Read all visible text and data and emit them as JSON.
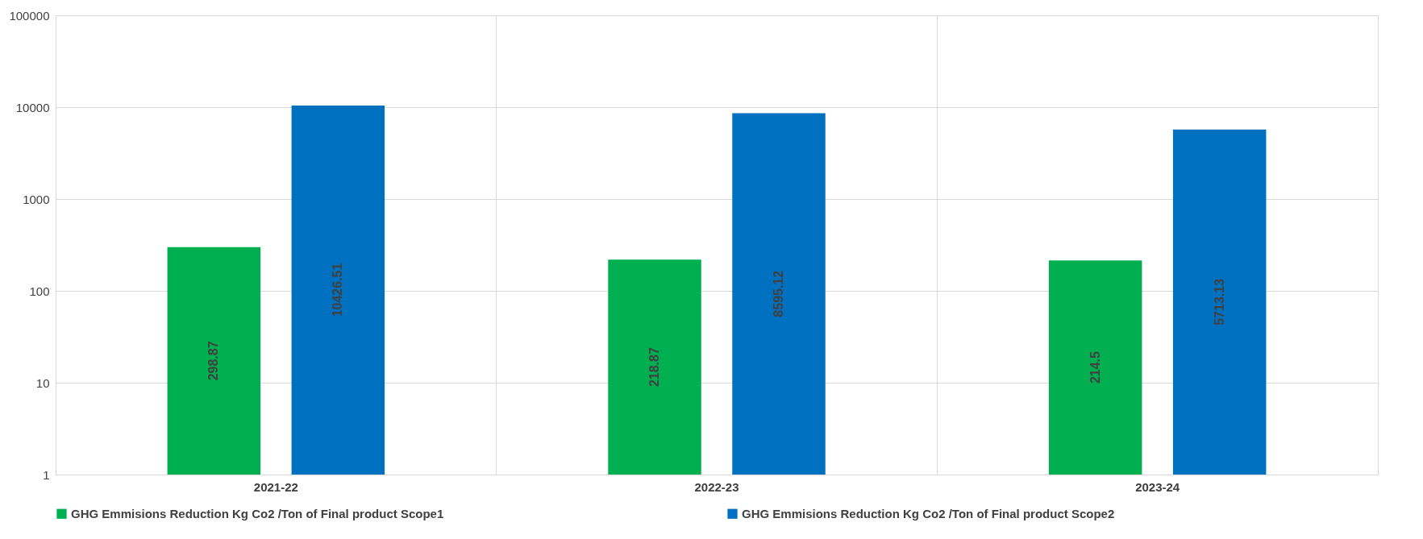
{
  "chart_data": {
    "type": "bar",
    "categories": [
      "2021-22",
      "2022-23",
      "2023-24"
    ],
    "series": [
      {
        "name": "GHG Emmisions Reduction Kg Co2 /Ton of Final product Scope1",
        "color": "#00b050",
        "values": [
          298.87,
          218.87,
          214.5
        ]
      },
      {
        "name": "GHG Emmisions Reduction Kg Co2 /Ton of Final product Scope2",
        "color": "#0070c0",
        "values": [
          10426.51,
          8595.12,
          5713.13
        ]
      }
    ],
    "log": true,
    "ylim": [
      1,
      100000
    ],
    "yticks": [
      1,
      10,
      100,
      1000,
      10000,
      100000
    ],
    "grid": true,
    "legend": "bottom",
    "data_labels": true
  }
}
